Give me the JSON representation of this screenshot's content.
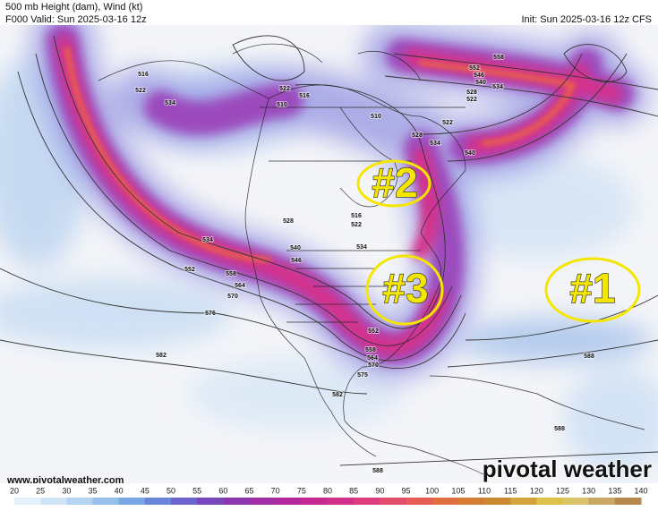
{
  "header": {
    "title": "500 mb Height (dam), Wind (kt)",
    "valid": "F000 Valid: Sun 2025-03-16 12z",
    "init": "Init: Sun 2025-03-16 12z CFS"
  },
  "map": {
    "contour_labels": [
      516,
      522,
      534,
      522,
      516,
      510,
      510,
      522,
      528,
      534,
      540,
      552,
      558,
      546,
      540,
      534,
      528,
      522,
      528,
      516,
      522,
      534,
      540,
      546,
      534,
      552,
      558,
      564,
      570,
      576,
      582,
      552,
      558,
      564,
      570,
      575,
      582,
      588,
      588,
      588
    ],
    "annotations": [
      "#1",
      "#2",
      "#3"
    ]
  },
  "footer": {
    "url": "www.pivotalweather.com",
    "logo": "pivotal weather"
  },
  "colorbar": {
    "ticks": [
      20,
      25,
      30,
      35,
      40,
      45,
      50,
      55,
      60,
      65,
      70,
      75,
      80,
      85,
      90,
      95,
      100,
      105,
      110,
      115,
      120,
      125,
      130,
      135,
      140
    ],
    "colors": [
      "#e6f2fb",
      "#cfe4f7",
      "#b5d3f2",
      "#97bfec",
      "#7aa6e3",
      "#6a86d9",
      "#6c63cc",
      "#7a48bd",
      "#8c36ae",
      "#a02da4",
      "#b3299b",
      "#c52a92",
      "#d2318a",
      "#dc3d7d",
      "#e24c6b",
      "#e55d55",
      "#e06d42",
      "#d47b36",
      "#c98a34",
      "#d1a43c",
      "#dcc048",
      "#d9c46a",
      "#c9a866",
      "#b58a4f"
    ]
  }
}
